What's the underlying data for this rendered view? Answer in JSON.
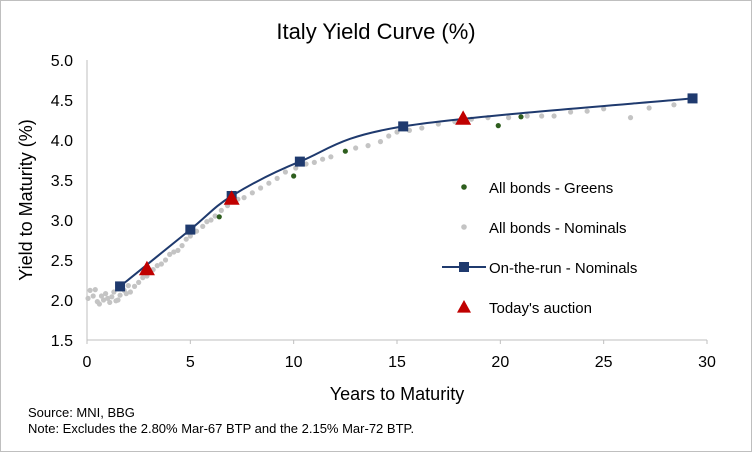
{
  "chart_data": {
    "type": "scatter",
    "title": "Italy Yield Curve (%)",
    "xlabel": "Years to Maturity",
    "ylabel": "Yield to Maturity (%)",
    "xlim": [
      0,
      30
    ],
    "ylim": [
      1.5,
      5.0
    ],
    "xticks": [
      "0",
      "5",
      "10",
      "15",
      "20",
      "25",
      "30"
    ],
    "yticks": [
      "1.5",
      "2.0",
      "2.5",
      "3.0",
      "3.5",
      "4.0",
      "4.5",
      "5.0"
    ],
    "grid": false,
    "legend_position": "right",
    "colors": {
      "greens": "#2e5e1e",
      "nominals": "#c4c4c4",
      "otr": "#1f3a6e",
      "auction": "#c00000"
    },
    "series": [
      {
        "name": "All bonds - Greens",
        "marker": "dot",
        "points": [
          [
            6.4,
            3.04
          ],
          [
            10.0,
            3.55
          ],
          [
            12.5,
            3.86
          ],
          [
            19.9,
            4.18
          ],
          [
            21.0,
            4.29
          ]
        ]
      },
      {
        "name": "All bonds - Nominals",
        "marker": "dot",
        "points": [
          [
            0.05,
            2.02
          ],
          [
            0.15,
            2.12
          ],
          [
            0.3,
            2.05
          ],
          [
            0.4,
            2.13
          ],
          [
            0.5,
            1.98
          ],
          [
            0.6,
            1.95
          ],
          [
            0.7,
            2.05
          ],
          [
            0.8,
            2.0
          ],
          [
            0.9,
            2.08
          ],
          [
            1.0,
            2.02
          ],
          [
            1.1,
            1.97
          ],
          [
            1.2,
            2.04
          ],
          [
            1.3,
            2.1
          ],
          [
            1.4,
            1.99
          ],
          [
            1.5,
            2.0
          ],
          [
            1.6,
            2.06
          ],
          [
            1.8,
            2.12
          ],
          [
            1.9,
            2.08
          ],
          [
            2.0,
            2.18
          ],
          [
            2.1,
            2.1
          ],
          [
            2.3,
            2.17
          ],
          [
            2.5,
            2.22
          ],
          [
            2.7,
            2.28
          ],
          [
            2.9,
            2.3
          ],
          [
            3.0,
            2.36
          ],
          [
            3.2,
            2.38
          ],
          [
            3.4,
            2.43
          ],
          [
            3.6,
            2.45
          ],
          [
            3.8,
            2.5
          ],
          [
            4.0,
            2.57
          ],
          [
            4.2,
            2.6
          ],
          [
            4.4,
            2.62
          ],
          [
            4.6,
            2.68
          ],
          [
            4.8,
            2.76
          ],
          [
            5.0,
            2.8
          ],
          [
            5.3,
            2.86
          ],
          [
            5.6,
            2.92
          ],
          [
            5.8,
            2.98
          ],
          [
            6.0,
            3.0
          ],
          [
            6.2,
            3.05
          ],
          [
            6.5,
            3.12
          ],
          [
            6.8,
            3.18
          ],
          [
            7.0,
            3.25
          ],
          [
            7.3,
            3.26
          ],
          [
            7.6,
            3.28
          ],
          [
            8.0,
            3.34
          ],
          [
            8.4,
            3.4
          ],
          [
            8.8,
            3.46
          ],
          [
            9.2,
            3.52
          ],
          [
            9.6,
            3.6
          ],
          [
            10.1,
            3.65
          ],
          [
            10.6,
            3.7
          ],
          [
            11.0,
            3.72
          ],
          [
            11.4,
            3.76
          ],
          [
            11.8,
            3.79
          ],
          [
            13.0,
            3.9
          ],
          [
            13.6,
            3.93
          ],
          [
            14.2,
            3.98
          ],
          [
            14.6,
            4.05
          ],
          [
            15.0,
            4.1
          ],
          [
            15.6,
            4.12
          ],
          [
            16.2,
            4.15
          ],
          [
            17.0,
            4.2
          ],
          [
            17.8,
            4.23
          ],
          [
            18.6,
            4.26
          ],
          [
            19.4,
            4.28
          ],
          [
            20.4,
            4.28
          ],
          [
            21.3,
            4.3
          ],
          [
            22.0,
            4.3
          ],
          [
            22.6,
            4.3
          ],
          [
            23.4,
            4.35
          ],
          [
            24.2,
            4.36
          ],
          [
            25.0,
            4.39
          ],
          [
            26.3,
            4.28
          ],
          [
            27.2,
            4.4
          ],
          [
            28.4,
            4.44
          ],
          [
            29.2,
            4.5
          ]
        ]
      },
      {
        "name": "On-the-run  - Nominals",
        "marker": "square",
        "line": true,
        "points": [
          [
            1.6,
            2.17
          ],
          [
            5.0,
            2.88
          ],
          [
            7.0,
            3.3
          ],
          [
            10.3,
            3.73
          ],
          [
            15.3,
            4.17
          ],
          [
            29.3,
            4.52
          ]
        ]
      },
      {
        "name": "Today's auction",
        "marker": "triangle",
        "points": [
          [
            2.9,
            2.39
          ],
          [
            7.0,
            3.27
          ],
          [
            18.2,
            4.27
          ]
        ]
      }
    ]
  },
  "footnotes": {
    "source": "Source: MNI,  BBG",
    "note": "Note: Excludes the 2.80% Mar-67 BTP  and the 2.15% Mar-72 BTP."
  }
}
